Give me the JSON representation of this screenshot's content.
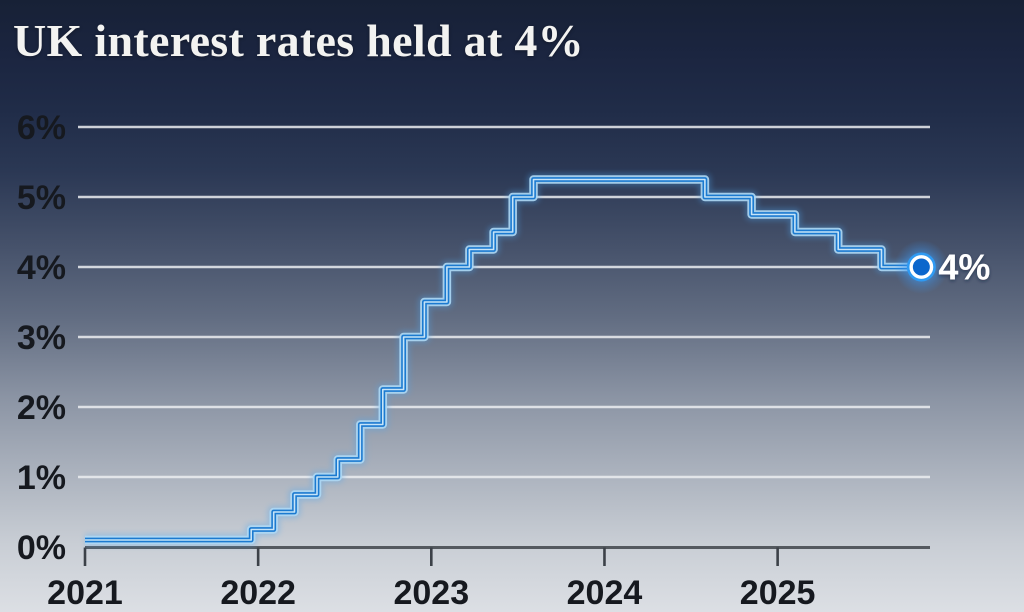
{
  "header": {
    "title": "UK interest rates held at 4%"
  },
  "chart_data": {
    "type": "line",
    "subtype": "step-after",
    "title": "UK interest rates held at 4%",
    "legend_position": "none",
    "grid": true,
    "x_axis": {
      "range": [
        2021.0,
        2025.88
      ],
      "tick_positions": [
        2021,
        2022,
        2023,
        2024,
        2025
      ],
      "tick_labels": [
        "2021",
        "2022",
        "2023",
        "2024",
        "2025"
      ]
    },
    "y_axis": {
      "range": [
        0,
        6
      ],
      "tick_values": [
        0,
        1,
        2,
        3,
        4,
        5,
        6
      ],
      "tick_labels": [
        "0%",
        "1%",
        "2%",
        "3%",
        "4%",
        "5%",
        "6%"
      ]
    },
    "series": [
      {
        "name": "UK interest rate",
        "points": [
          {
            "t": 2021.0,
            "rate": 0.1
          },
          {
            "t": 2021.96,
            "rate": 0.25
          },
          {
            "t": 2022.09,
            "rate": 0.5
          },
          {
            "t": 2022.21,
            "rate": 0.75
          },
          {
            "t": 2022.34,
            "rate": 1.0
          },
          {
            "t": 2022.46,
            "rate": 1.25
          },
          {
            "t": 2022.59,
            "rate": 1.75
          },
          {
            "t": 2022.72,
            "rate": 2.25
          },
          {
            "t": 2022.84,
            "rate": 3.0
          },
          {
            "t": 2022.96,
            "rate": 3.5
          },
          {
            "t": 2023.09,
            "rate": 4.0
          },
          {
            "t": 2023.22,
            "rate": 4.25
          },
          {
            "t": 2023.36,
            "rate": 4.5
          },
          {
            "t": 2023.47,
            "rate": 5.0
          },
          {
            "t": 2023.59,
            "rate": 5.25
          },
          {
            "t": 2024.58,
            "rate": 5.0
          },
          {
            "t": 2024.85,
            "rate": 4.75
          },
          {
            "t": 2025.1,
            "rate": 4.5
          },
          {
            "t": 2025.35,
            "rate": 4.25
          },
          {
            "t": 2025.6,
            "rate": 4.0
          }
        ],
        "end_point": {
          "t": 2025.83,
          "rate": 4.0
        }
      }
    ],
    "end_annotation": {
      "label": "4%",
      "marker": true
    },
    "colors": {
      "line_core": "#1b7ad0",
      "line_halo": "#aed8f4",
      "line_highlight": "#cfeafb",
      "line_glow": "#4da6f0",
      "marker_outer": "#2f9af2",
      "marker_ring": "#ffffff",
      "marker_fill": "#0b66cc",
      "grid": "#eceef1",
      "axis": "#54595f",
      "tick": "#3c4148",
      "axis_label": "#16191f",
      "end_label": "#ffffff",
      "title": "#f3f3f1"
    }
  }
}
